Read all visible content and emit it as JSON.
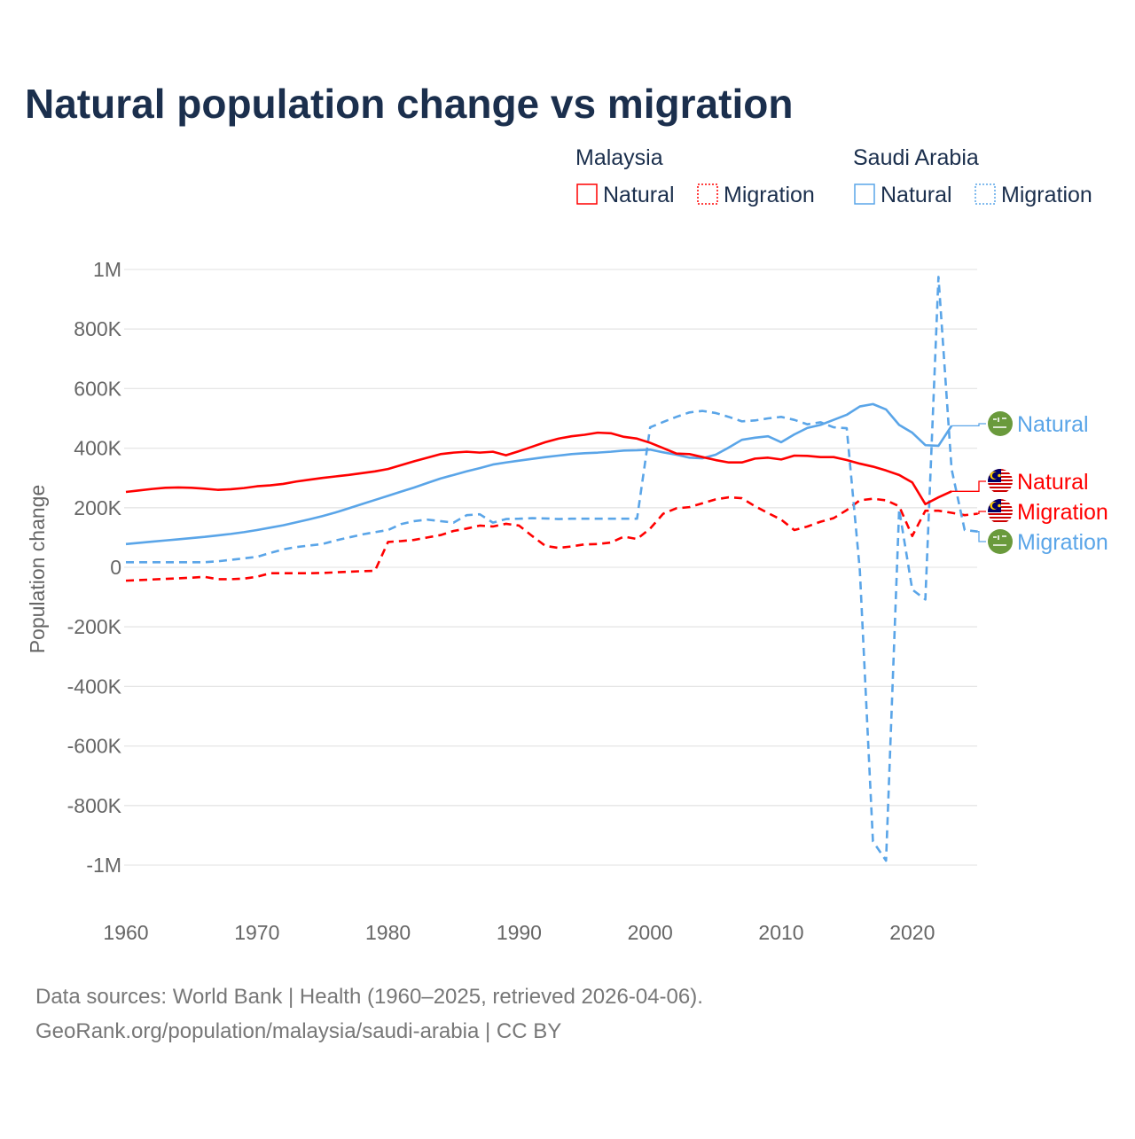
{
  "chart_data": {
    "type": "line",
    "title": "Natural population change vs migration",
    "xlabel": "",
    "ylabel": "Population change",
    "xlim": [
      1960,
      2025
    ],
    "ylim": [
      -1000000,
      1000000
    ],
    "x_ticks": [
      "1960",
      "1970",
      "1980",
      "1990",
      "2000",
      "2010",
      "2020"
    ],
    "y_ticks": [
      {
        "value": 1000000,
        "label": "1M"
      },
      {
        "value": 800000,
        "label": "800K"
      },
      {
        "value": 600000,
        "label": "600K"
      },
      {
        "value": 400000,
        "label": "400K"
      },
      {
        "value": 200000,
        "label": "200K"
      },
      {
        "value": 0,
        "label": "0"
      },
      {
        "value": -200000,
        "label": "-200K"
      },
      {
        "value": -400000,
        "label": "-400K"
      },
      {
        "value": -600000,
        "label": "-600K"
      },
      {
        "value": -800000,
        "label": "-800K"
      },
      {
        "value": -1000000,
        "label": "-1M"
      }
    ],
    "grid": true,
    "legend_placement": "top-right",
    "legend": {
      "groups": [
        {
          "country": "Malaysia",
          "items": [
            "Natural",
            "Migration"
          ]
        },
        {
          "country": "Saudi Arabia",
          "items": [
            "Natural",
            "Migration"
          ]
        }
      ]
    },
    "value_unit": "thousands",
    "series": [
      {
        "name": "Malaysia Natural",
        "country": "Malaysia",
        "kind": "Natural",
        "color": "#ff0000",
        "dash": "solid",
        "start_year": 1960,
        "end_label": "Natural",
        "values": [
          253,
          258,
          263,
          267,
          268,
          267,
          264,
          260,
          262,
          266,
          272,
          275,
          280,
          288,
          294,
          300,
          305,
          310,
          316,
          322,
          330,
          343,
          356,
          368,
          380,
          385,
          388,
          385,
          388,
          376,
          390,
          405,
          420,
          432,
          440,
          445,
          452,
          450,
          438,
          432,
          418,
          400,
          382,
          380,
          370,
          360,
          352,
          352,
          365,
          368,
          362,
          375,
          374,
          370,
          370,
          360,
          348,
          338,
          325,
          310,
          285,
          212,
          235,
          255
        ]
      },
      {
        "name": "Malaysia Migration",
        "country": "Malaysia",
        "kind": "Migration",
        "color": "#ff0000",
        "dash": "dashed",
        "start_year": 1960,
        "end_label": "Migration",
        "values": [
          -45,
          -43,
          -41,
          -39,
          -37,
          -35,
          -32,
          -40,
          -40,
          -38,
          -32,
          -20,
          -20,
          -20,
          -20,
          -19,
          -17,
          -15,
          -13,
          -12,
          85,
          88,
          92,
          100,
          108,
          122,
          130,
          140,
          137,
          146,
          140,
          105,
          72,
          65,
          70,
          77,
          78,
          83,
          103,
          95,
          130,
          180,
          198,
          202,
          215,
          228,
          235,
          232,
          205,
          182,
          160,
          125,
          137,
          153,
          165,
          192,
          225,
          230,
          225,
          205,
          105,
          190,
          190,
          183,
          175,
          180
        ]
      },
      {
        "name": "Saudi Arabia Natural",
        "country": "Saudi Arabia",
        "kind": "Natural",
        "color": "#5aa5e8",
        "dash": "solid",
        "start_year": 1960,
        "end_label": "Natural",
        "values": [
          78,
          82,
          86,
          90,
          94,
          98,
          102,
          107,
          112,
          118,
          125,
          133,
          141,
          151,
          161,
          172,
          184,
          198,
          212,
          226,
          240,
          254,
          268,
          283,
          298,
          310,
          322,
          333,
          345,
          352,
          358,
          364,
          370,
          375,
          380,
          383,
          385,
          388,
          392,
          393,
          395,
          386,
          378,
          368,
          366,
          378,
          402,
          428,
          435,
          440,
          420,
          446,
          468,
          478,
          495,
          512,
          540,
          548,
          530,
          478,
          452,
          410,
          408,
          475
        ]
      },
      {
        "name": "Saudi Arabia Migration",
        "country": "Saudi Arabia",
        "kind": "Migration",
        "color": "#5aa5e8",
        "dash": "dashed",
        "start_year": 1960,
        "end_label": "Migration",
        "values": [
          17,
          17,
          17,
          17,
          17,
          17,
          17,
          20,
          25,
          30,
          35,
          48,
          60,
          68,
          73,
          78,
          90,
          100,
          110,
          118,
          125,
          145,
          155,
          160,
          155,
          150,
          175,
          178,
          150,
          162,
          163,
          165,
          164,
          162,
          163,
          163,
          163,
          163,
          163,
          163,
          470,
          488,
          505,
          520,
          525,
          518,
          505,
          490,
          493,
          500,
          505,
          495,
          480,
          487,
          470,
          467,
          -10,
          -920,
          -985,
          195,
          -75,
          -108,
          975,
          330,
          125,
          120
        ]
      }
    ]
  },
  "footer": {
    "line1": "Data sources: World Bank | Health (1960–2025, retrieved 2026-04-06).",
    "line2": "GeoRank.org/population/malaysia/saudi-arabia | CC BY"
  },
  "flags": {
    "saudi_arabia": {
      "icon": "saudi-arabia-flag",
      "color": "#6a9a3c",
      "emblem_text": "لا إله"
    },
    "malaysia": {
      "icon": "malaysia-flag"
    }
  }
}
